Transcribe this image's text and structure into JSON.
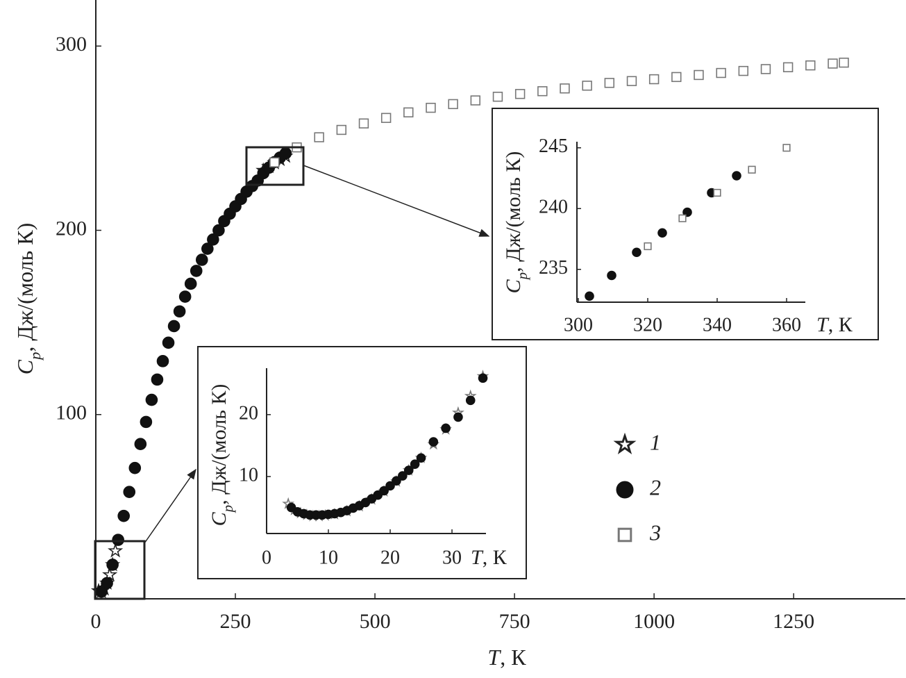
{
  "chart_data": [
    {
      "type": "scatter",
      "x_label": {
        "symbol": "T",
        "unit": ", К"
      },
      "y_label": {
        "symbol": "C",
        "subscript": "p",
        "unit": ", Дж/(моль К)"
      },
      "xlim": [
        0,
        1450
      ],
      "ylim": [
        0,
        325
      ],
      "xticks": [
        0,
        250,
        500,
        750,
        1000,
        1250
      ],
      "yticks": [
        100,
        200,
        300
      ],
      "legend": "right",
      "series": [
        {
          "name": "1",
          "marker": "star",
          "color": "#222222",
          "fill": "#ffffff",
          "x": [
            5,
            10,
            15,
            20,
            25,
            30,
            35,
            300,
            310,
            320,
            330,
            340
          ],
          "values": [
            4.3,
            3.9,
            5.3,
            8.5,
            13,
            18.5,
            26,
            232.5,
            234.6,
            236.6,
            238.4,
            240.2
          ]
        },
        {
          "name": "2",
          "marker": "circle",
          "color": "#111111",
          "fill": "#111111",
          "x": [
            10,
            20,
            30,
            40,
            50,
            60,
            70,
            80,
            90,
            100,
            110,
            120,
            130,
            140,
            150,
            160,
            170,
            180,
            190,
            200,
            210,
            220,
            230,
            240,
            250,
            260,
            270,
            280,
            290,
            300,
            310,
            320,
            330,
            340
          ],
          "values": [
            3.9,
            8.5,
            18.5,
            32,
            45,
            58,
            71,
            84,
            96,
            108,
            119,
            129,
            139,
            148,
            156,
            164,
            171,
            178,
            184,
            190,
            195,
            200,
            205,
            209,
            213,
            217,
            221,
            224,
            227,
            231,
            234,
            237,
            239.5,
            241.8
          ]
        },
        {
          "name": "3",
          "marker": "square",
          "color": "#777777",
          "fill": "#ffffff",
          "x": [
            320,
            360,
            400,
            440,
            480,
            520,
            560,
            600,
            640,
            680,
            720,
            760,
            800,
            840,
            880,
            920,
            960,
            1000,
            1040,
            1080,
            1120,
            1160,
            1200,
            1240,
            1280,
            1320,
            1340
          ],
          "values": [
            236.9,
            245,
            250.5,
            254.5,
            258,
            261,
            264,
            266.5,
            268.5,
            270.5,
            272.5,
            274,
            275.5,
            277,
            278.5,
            280,
            281,
            282,
            283.2,
            284.3,
            285.4,
            286.5,
            287.5,
            288.5,
            289.5,
            290.5,
            291
          ]
        }
      ]
    },
    {
      "type": "scatter",
      "x_label": {
        "symbol": "T",
        "unit": ", К"
      },
      "y_label": {
        "symbol": "C",
        "subscript": "p",
        "unit": ", Дж/(моль К)"
      },
      "xlim": [
        0,
        35.5
      ],
      "ylim": [
        0.8,
        27.5
      ],
      "xticks": [
        0,
        10,
        20,
        30
      ],
      "yticks": [
        10,
        20
      ],
      "series": [
        {
          "marker": "star",
          "color": "#777777",
          "fill": "#ffffff",
          "x": [
            3.5,
            4.5,
            5.5,
            6.5,
            7.5,
            8.5,
            9.5,
            11,
            13,
            15,
            17,
            19,
            21,
            23,
            25,
            27,
            29,
            31,
            33,
            35
          ],
          "values": [
            5.6,
            4.6,
            4.1,
            3.8,
            3.6,
            3.6,
            3.7,
            3.9,
            4.4,
            5.2,
            6.3,
            7.6,
            9.2,
            11,
            13,
            15.2,
            17.6,
            20.3,
            23,
            26.2
          ]
        },
        {
          "marker": "circle",
          "color": "#111111",
          "fill": "#111111",
          "x": [
            4,
            5,
            6,
            7,
            8,
            9,
            10,
            11,
            12,
            13,
            14,
            15,
            16,
            17,
            18,
            19,
            20,
            21,
            22,
            23,
            24,
            25,
            27,
            29,
            31,
            33,
            35
          ],
          "values": [
            5.0,
            4.3,
            4.0,
            3.8,
            3.8,
            3.8,
            3.9,
            4.0,
            4.2,
            4.5,
            4.9,
            5.3,
            5.8,
            6.4,
            7.0,
            7.7,
            8.5,
            9.3,
            10.1,
            11.0,
            12.0,
            13.0,
            15.6,
            17.8,
            19.6,
            22.3,
            25.9
          ]
        }
      ]
    },
    {
      "type": "scatter",
      "x_label": {
        "symbol": "T",
        "unit": ", К"
      },
      "y_label": {
        "symbol": "C",
        "subscript": "p",
        "unit": ", Дж/(моль К)"
      },
      "xlim": [
        299.6,
        365.4
      ],
      "ylim": [
        232.3,
        245.5
      ],
      "xticks": [
        300,
        320,
        340,
        360
      ],
      "yticks": [
        235,
        240,
        245
      ],
      "series": [
        {
          "marker": "circle",
          "color": "#111111",
          "fill": "#111111",
          "x": [
            303.2,
            309.6,
            316.8,
            324.2,
            331.4,
            338.4,
            345.6
          ],
          "values": [
            232.8,
            234.5,
            236.4,
            238.0,
            239.7,
            241.3,
            242.7
          ]
        },
        {
          "marker": "square",
          "color": "#777777",
          "fill": "#ffffff",
          "x": [
            320,
            330,
            340,
            350,
            360
          ],
          "values": [
            236.9,
            239.2,
            241.3,
            243.2,
            245.0
          ]
        }
      ]
    }
  ]
}
